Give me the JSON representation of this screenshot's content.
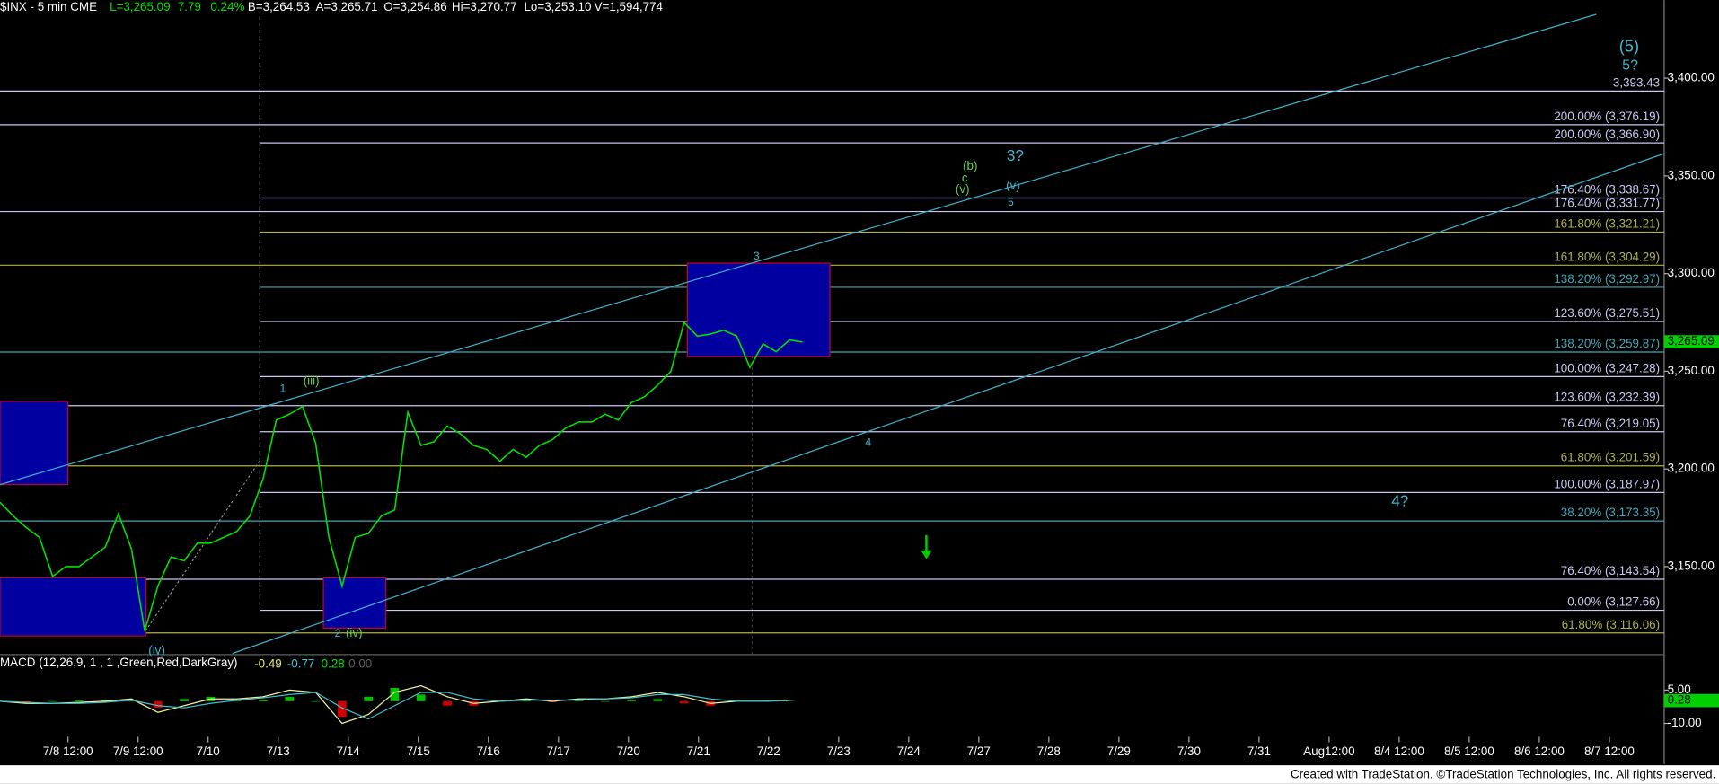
{
  "chart_data": {
    "type": "line",
    "header": [
      {
        "text": "$INX - 5 min CME",
        "color": "#ffffff"
      },
      {
        "text": "L=3,265.09",
        "color": "#00e000"
      },
      {
        "text": "7.79",
        "color": "#00e000"
      },
      {
        "text": "0.24%",
        "color": "#00e000"
      },
      {
        "text": "B=3,264.53",
        "color": "#ffffff"
      },
      {
        "text": "A=3,265.71",
        "color": "#ffffff"
      },
      {
        "text": "O=3,254.86",
        "color": "#ffffff"
      },
      {
        "text": "Hi=3,270.77",
        "color": "#ffffff"
      },
      {
        "text": "Lo=3,253.10",
        "color": "#ffffff"
      },
      {
        "text": "V=1,594,774",
        "color": "#ffffff"
      }
    ],
    "ylim": [
      3105,
      3440
    ],
    "yticks": [
      {
        "value": 3150,
        "label": "3,150.00"
      },
      {
        "value": 3200,
        "label": "3,200.00"
      },
      {
        "value": 3250,
        "label": "3,250.00"
      },
      {
        "value": 3300,
        "label": "3,300.00"
      },
      {
        "value": 3350,
        "label": "3,350.00"
      },
      {
        "value": 3400,
        "label": "3,400.00"
      }
    ],
    "last_price": {
      "value": 3265.09,
      "label": "3,265.09"
    },
    "price": {
      "color": "#00e000",
      "values": [
        3183,
        3176,
        3170,
        3165,
        3145,
        3150,
        3150,
        3155,
        3160,
        3177,
        3159,
        3117,
        3140,
        3155,
        3153,
        3162,
        3162,
        3165,
        3168,
        3176,
        3195,
        3225,
        3228,
        3232,
        3213,
        3165,
        3140,
        3165,
        3167,
        3176,
        3179,
        3229,
        3212,
        3214,
        3222,
        3218,
        3212,
        3210,
        3204,
        3210,
        3206,
        3212,
        3215,
        3221,
        3224,
        3224,
        3228,
        3225,
        3234,
        3237,
        3243,
        3250,
        3275,
        3268,
        3269,
        3271,
        3268,
        3252,
        3264,
        3260,
        3266,
        3265
      ]
    },
    "fib_levels": [
      {
        "label": "3,393.43",
        "value": 3393.43,
        "color": "#c8c8f0"
      },
      {
        "label": "200.00% (3,376.19)",
        "value": 3376.19,
        "color": "#c8c8f0"
      },
      {
        "label": "200.00% (3,366.90)",
        "value": 3366.9,
        "color": "#c8c8f0"
      },
      {
        "label": "176.40% (3,338.67)",
        "value": 3338.67,
        "color": "#c8c8f0"
      },
      {
        "label": "176.40% (3,331.77)",
        "value": 3331.77,
        "color": "#c8c8f0"
      },
      {
        "label": "161.80% (3,321.21)",
        "value": 3321.21,
        "color": "#b0b050"
      },
      {
        "label": "161.80% (3,304.29)",
        "value": 3304.29,
        "color": "#b0b050"
      },
      {
        "label": "138.20% (3,292.97)",
        "value": 3292.97,
        "color": "#40a8b8"
      },
      {
        "label": "123.60% (3,275.51)",
        "value": 3275.51,
        "color": "#c8c8f0"
      },
      {
        "label": "138.20% (3,259.87)",
        "value": 3259.87,
        "color": "#40a8b8"
      },
      {
        "label": "100.00% (3,247.28)",
        "value": 3247.28,
        "color": "#c8c8f0"
      },
      {
        "label": "123.60% (3,232.39)",
        "value": 3232.39,
        "color": "#c8c8f0"
      },
      {
        "label": "76.40% (3,219.05)",
        "value": 3219.05,
        "color": "#c8c8f0"
      },
      {
        "label": "61.80% (3,201.59)",
        "value": 3201.59,
        "color": "#b0b050"
      },
      {
        "label": "100.00% (3,187.97)",
        "value": 3187.97,
        "color": "#c8c8f0"
      },
      {
        "label": "38.20% (3,173.35)",
        "value": 3173.35,
        "color": "#40a8b8"
      },
      {
        "label": "76.40% (3,143.54)",
        "value": 3143.54,
        "color": "#c8c8f0"
      },
      {
        "label": "0.00% (3,127.66)",
        "value": 3127.66,
        "color": "#c8c8f0"
      },
      {
        "label": "61.80% (3,116.06)",
        "value": 3116.06,
        "color": "#b0b050"
      }
    ],
    "annotations": [
      {
        "text": "(5)",
        "color": "#40b8d0"
      },
      {
        "text": "5?",
        "color": "#40b8d0"
      },
      {
        "text": "3?",
        "color": "#40b8d0"
      },
      {
        "text": "(b)",
        "color": "#60d040"
      },
      {
        "text": "c",
        "color": "#60d040"
      },
      {
        "text": "(v)",
        "color": "#60d040"
      },
      {
        "text": "(v)",
        "color": "#40b8d0"
      },
      {
        "text": "5",
        "color": "#40b8d0"
      },
      {
        "text": "3",
        "color": "#40b8d0"
      },
      {
        "text": "1",
        "color": "#40b8d0"
      },
      {
        "text": "(iii)",
        "color": "#60d040"
      },
      {
        "text": "4",
        "color": "#40b8d0"
      },
      {
        "text": "2",
        "color": "#40b8d0"
      },
      {
        "text": "(iv)",
        "color": "#60d040"
      },
      {
        "text": "(iv)",
        "color": "#40b8d0"
      },
      {
        "text": "4?",
        "color": "#40b8d0"
      }
    ],
    "macd": {
      "title": "MACD (12,26,9, 1 , 1 ,Green,Red,DarkGray)",
      "readouts": [
        {
          "text": "-0.49",
          "color": "#e8e860"
        },
        {
          "text": "-0.77",
          "color": "#40c0d0"
        },
        {
          "text": "0.28",
          "color": "#00e000"
        },
        {
          "text": "0.00",
          "color": "#606060"
        }
      ],
      "ylim": [
        -16,
        21
      ],
      "yticks": [
        {
          "value": 5,
          "label": "5.00"
        },
        {
          "value": -10,
          "label": "-10.00"
        }
      ],
      "last": {
        "value": 0.28,
        "label": "0.28"
      },
      "series": [
        {
          "color": "#f0f0a0",
          "values": [
            0,
            -1,
            -1,
            -0.5,
            0,
            1,
            -5,
            -2,
            1,
            1,
            2,
            5,
            4,
            -10,
            -6,
            4,
            7,
            2,
            -1,
            0,
            1,
            0,
            1,
            1,
            2,
            4,
            2,
            -1,
            0,
            0,
            0.5
          ]
        },
        {
          "color": "#40c0d0",
          "values": [
            0,
            -0.5,
            -1,
            -1,
            -0.5,
            0.5,
            -2,
            -3,
            -1,
            0.5,
            1.5,
            3,
            4,
            -3,
            -8,
            -2,
            4,
            4,
            1,
            0,
            0.5,
            0.5,
            0.5,
            1,
            1.5,
            3,
            3,
            1,
            0,
            0,
            0.3
          ]
        }
      ],
      "hist": {
        "values": [
          0,
          -0.5,
          0,
          0.5,
          0.5,
          0.5,
          -3,
          1,
          2,
          0.5,
          0.5,
          2,
          0,
          -7,
          2,
          6,
          3,
          -2,
          -2,
          0,
          0.5,
          -0.5,
          0.5,
          0,
          0.5,
          1,
          -1,
          -2,
          0,
          0,
          0.2
        ]
      }
    },
    "categories": [
      "7/8 12:00",
      "7/9 12:00",
      "7/10",
      "7/13",
      "7/14",
      "7/15",
      "7/16",
      "7/17",
      "7/20",
      "7/21",
      "7/22",
      "7/23",
      "7/24",
      "7/27",
      "7/28",
      "7/29",
      "7/30",
      "7/31",
      "Aug12:00",
      "8/4 12:00",
      "8/5 12:00",
      "8/6 12:00",
      "8/7 12:00"
    ],
    "footer": "Created with TradeStation. ©TradeStation Technologies, Inc. All rights reserved."
  }
}
